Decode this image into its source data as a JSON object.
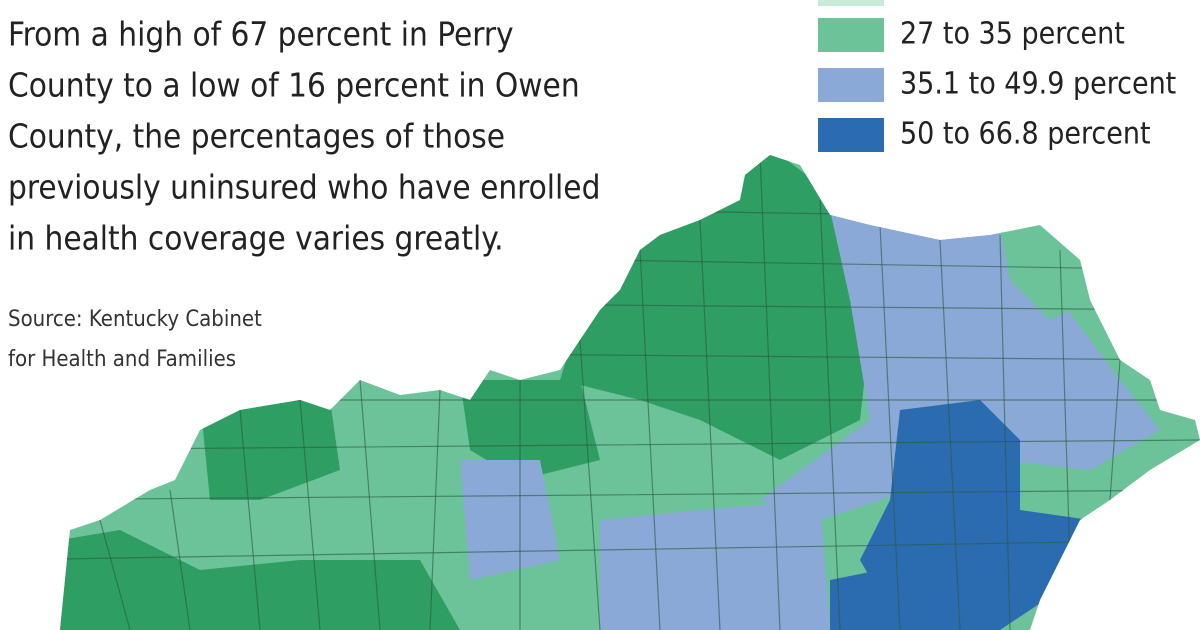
{
  "description_lines": [
    "From a high of 67 percent in Perry",
    "County to a low of 16 percent in Owen",
    "County, the percentages of those",
    "previously uninsured who have enrolled",
    "in health coverage varies greatly."
  ],
  "source_lines": [
    "Source: Kentucky Cabinet",
    "for Health and Families"
  ],
  "legend": [
    {
      "label": "27 to 35 percent",
      "color": "#6cc39a"
    },
    {
      "label": "35.1 to 49.9 percent",
      "color": "#8aa9d6"
    },
    {
      "label": "50 to 66.8 percent",
      "color": "#2b6cb0"
    }
  ]
}
